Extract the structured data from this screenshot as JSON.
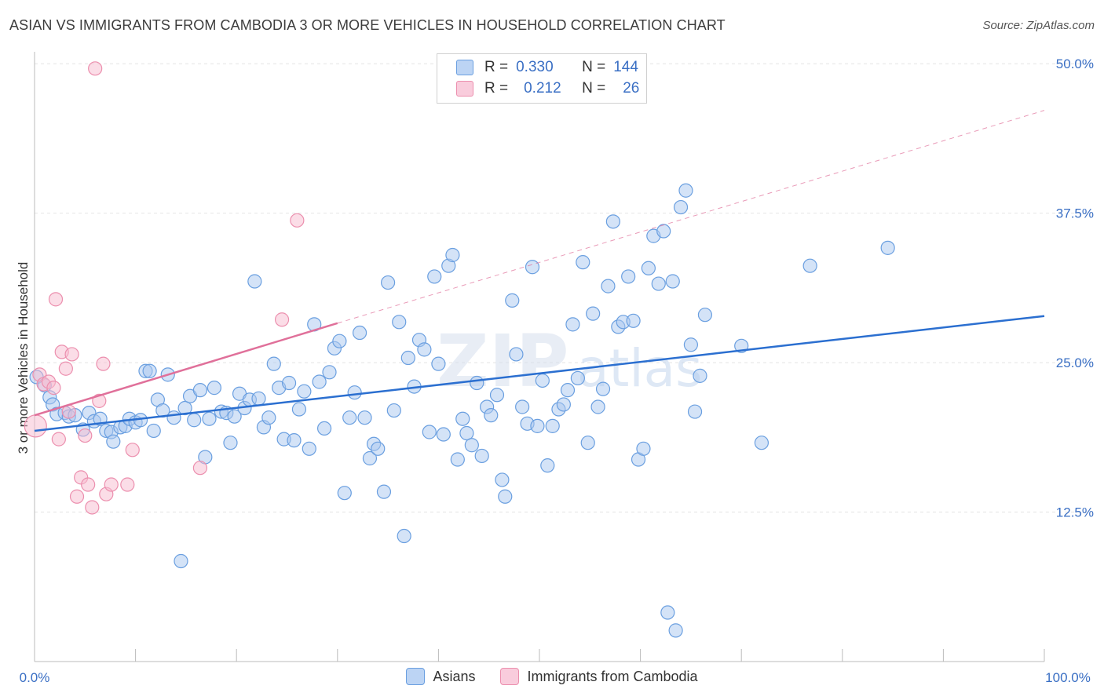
{
  "title": "ASIAN VS IMMIGRANTS FROM CAMBODIA 3 OR MORE VEHICLES IN HOUSEHOLD CORRELATION CHART",
  "source": "Source: ZipAtlas.com",
  "watermark": {
    "left": "ZIP",
    "right": "atlas"
  },
  "legend": {
    "rows": [
      {
        "r_label": "R =",
        "r_value": "0.330",
        "n_label": "N =",
        "n_value": "144"
      },
      {
        "r_label": "R =",
        "r_value": "0.212",
        "n_label": "N =",
        "n_value": "26"
      }
    ]
  },
  "bottom_legend": {
    "asians": "Asians",
    "cambodia": "Immigrants from Cambodia"
  },
  "colors": {
    "asians_fill": "#a9c8f0",
    "asians_stroke": "#6a9fe0",
    "asians_line": "#2b6fd0",
    "cambodia_fill": "#f7bcd0",
    "cambodia_stroke": "#ec8fae",
    "cambodia_line": "#e0709a",
    "tick_label": "#3a6fc4",
    "grid": "#e4e4e4"
  },
  "chart_data": {
    "type": "scatter",
    "title": "ASIAN VS IMMIGRANTS FROM CAMBODIA 3 OR MORE VEHICLES IN HOUSEHOLD CORRELATION CHART",
    "xlabel": "",
    "ylabel": "3 or more Vehicles in Household",
    "xlim": [
      0,
      100
    ],
    "ylim": [
      0,
      51
    ],
    "x_tick_labels": [
      "0.0%",
      "100.0%"
    ],
    "y_ticks": [
      12.5,
      25.0,
      37.5,
      50.0
    ],
    "y_tick_labels": [
      "12.5%",
      "25.0%",
      "37.5%",
      "50.0%"
    ],
    "grid": true,
    "legend_position": "top-center",
    "series": [
      {
        "name": "Asians",
        "R": 0.33,
        "N": 144,
        "trend": {
          "x": [
            0,
            100
          ],
          "y": [
            19.3,
            28.9
          ]
        },
        "points": [
          [
            0.2,
            23.8
          ],
          [
            1.0,
            23.1
          ],
          [
            1.5,
            22.1
          ],
          [
            1.8,
            21.5
          ],
          [
            2.2,
            20.7
          ],
          [
            3.0,
            20.8
          ],
          [
            3.4,
            20.5
          ],
          [
            4.0,
            20.6
          ],
          [
            4.8,
            19.4
          ],
          [
            5.4,
            20.8
          ],
          [
            5.9,
            20.1
          ],
          [
            6.5,
            20.3
          ],
          [
            7.1,
            19.3
          ],
          [
            7.6,
            19.2
          ],
          [
            7.8,
            18.4
          ],
          [
            8.5,
            19.6
          ],
          [
            9.0,
            19.7
          ],
          [
            9.4,
            20.3
          ],
          [
            10.0,
            20.0
          ],
          [
            10.5,
            20.2
          ],
          [
            11.0,
            24.3
          ],
          [
            11.4,
            24.3
          ],
          [
            11.8,
            19.3
          ],
          [
            12.2,
            21.9
          ],
          [
            12.7,
            21.0
          ],
          [
            13.2,
            24.0
          ],
          [
            13.8,
            20.4
          ],
          [
            14.5,
            8.4
          ],
          [
            14.9,
            21.2
          ],
          [
            15.4,
            22.2
          ],
          [
            15.8,
            20.2
          ],
          [
            16.4,
            22.7
          ],
          [
            16.9,
            17.1
          ],
          [
            17.3,
            20.3
          ],
          [
            17.8,
            22.9
          ],
          [
            18.5,
            20.9
          ],
          [
            19.0,
            20.8
          ],
          [
            19.4,
            18.3
          ],
          [
            19.8,
            20.5
          ],
          [
            20.3,
            22.4
          ],
          [
            20.8,
            21.2
          ],
          [
            21.3,
            21.9
          ],
          [
            21.8,
            31.8
          ],
          [
            22.2,
            22.0
          ],
          [
            22.7,
            19.6
          ],
          [
            23.2,
            20.4
          ],
          [
            23.7,
            24.9
          ],
          [
            24.2,
            22.9
          ],
          [
            24.7,
            18.6
          ],
          [
            25.2,
            23.3
          ],
          [
            25.7,
            18.5
          ],
          [
            26.2,
            21.1
          ],
          [
            26.7,
            22.6
          ],
          [
            27.2,
            17.8
          ],
          [
            27.7,
            28.2
          ],
          [
            28.2,
            23.4
          ],
          [
            28.7,
            19.5
          ],
          [
            29.2,
            24.2
          ],
          [
            29.7,
            26.2
          ],
          [
            30.2,
            26.8
          ],
          [
            30.7,
            14.1
          ],
          [
            31.2,
            20.4
          ],
          [
            31.7,
            22.5
          ],
          [
            32.2,
            27.5
          ],
          [
            32.7,
            20.4
          ],
          [
            33.2,
            17.0
          ],
          [
            33.6,
            18.2
          ],
          [
            34.0,
            17.8
          ],
          [
            34.6,
            14.2
          ],
          [
            35.0,
            31.7
          ],
          [
            35.6,
            21.0
          ],
          [
            36.1,
            28.4
          ],
          [
            36.6,
            10.5
          ],
          [
            37.0,
            25.4
          ],
          [
            37.6,
            23.0
          ],
          [
            38.1,
            26.9
          ],
          [
            38.6,
            26.1
          ],
          [
            39.1,
            19.2
          ],
          [
            39.6,
            32.2
          ],
          [
            40.0,
            24.9
          ],
          [
            40.5,
            19.0
          ],
          [
            41.0,
            33.1
          ],
          [
            41.4,
            34.0
          ],
          [
            41.9,
            16.9
          ],
          [
            42.4,
            20.3
          ],
          [
            42.8,
            19.1
          ],
          [
            43.3,
            18.1
          ],
          [
            43.8,
            23.3
          ],
          [
            44.3,
            17.2
          ],
          [
            44.8,
            21.3
          ],
          [
            45.2,
            20.6
          ],
          [
            45.8,
            22.3
          ],
          [
            46.3,
            15.2
          ],
          [
            46.6,
            13.8
          ],
          [
            47.3,
            30.2
          ],
          [
            47.7,
            25.7
          ],
          [
            48.3,
            21.3
          ],
          [
            48.8,
            19.9
          ],
          [
            49.3,
            33.0
          ],
          [
            49.8,
            19.7
          ],
          [
            50.3,
            23.5
          ],
          [
            50.8,
            16.4
          ],
          [
            51.3,
            19.7
          ],
          [
            51.9,
            21.1
          ],
          [
            52.4,
            21.5
          ],
          [
            52.8,
            22.7
          ],
          [
            53.3,
            28.2
          ],
          [
            53.8,
            23.7
          ],
          [
            54.3,
            33.4
          ],
          [
            54.8,
            18.3
          ],
          [
            55.3,
            29.1
          ],
          [
            55.8,
            21.3
          ],
          [
            56.3,
            22.8
          ],
          [
            56.8,
            31.4
          ],
          [
            57.3,
            36.8
          ],
          [
            57.8,
            28.0
          ],
          [
            58.3,
            28.4
          ],
          [
            58.8,
            32.2
          ],
          [
            59.3,
            28.5
          ],
          [
            59.8,
            16.9
          ],
          [
            60.3,
            17.8
          ],
          [
            60.8,
            32.9
          ],
          [
            61.3,
            35.6
          ],
          [
            61.8,
            31.6
          ],
          [
            62.3,
            36.0
          ],
          [
            62.7,
            4.1
          ],
          [
            63.2,
            31.8
          ],
          [
            63.5,
            2.6
          ],
          [
            64.0,
            38.0
          ],
          [
            64.5,
            39.4
          ],
          [
            65.0,
            26.5
          ],
          [
            65.4,
            20.9
          ],
          [
            65.9,
            23.9
          ],
          [
            66.4,
            29.0
          ],
          [
            70.0,
            26.4
          ],
          [
            72.0,
            18.3
          ],
          [
            76.8,
            33.1
          ],
          [
            84.5,
            34.6
          ]
        ]
      },
      {
        "name": "Immigrants from Cambodia",
        "R": 0.212,
        "N": 26,
        "trend": {
          "x": [
            0,
            30
          ],
          "y": [
            20.6,
            28.3
          ]
        },
        "trend_extension": {
          "x": [
            30,
            100
          ],
          "y": [
            28.3,
            46.1
          ]
        },
        "points": [
          [
            0.1,
            19.7
          ],
          [
            0.5,
            24.0
          ],
          [
            0.9,
            23.2
          ],
          [
            1.4,
            23.4
          ],
          [
            1.9,
            22.9
          ],
          [
            2.1,
            30.3
          ],
          [
            2.4,
            18.6
          ],
          [
            2.7,
            25.9
          ],
          [
            3.1,
            24.5
          ],
          [
            3.4,
            20.9
          ],
          [
            3.7,
            25.7
          ],
          [
            4.2,
            13.8
          ],
          [
            4.6,
            15.4
          ],
          [
            5.0,
            18.9
          ],
          [
            5.3,
            14.8
          ],
          [
            5.7,
            12.9
          ],
          [
            6.0,
            49.6
          ],
          [
            6.4,
            21.8
          ],
          [
            6.8,
            24.9
          ],
          [
            7.1,
            14.0
          ],
          [
            7.6,
            14.8
          ],
          [
            9.2,
            14.8
          ],
          [
            9.7,
            17.7
          ],
          [
            16.4,
            16.2
          ],
          [
            24.5,
            28.6
          ],
          [
            26.0,
            36.9
          ]
        ]
      }
    ]
  }
}
